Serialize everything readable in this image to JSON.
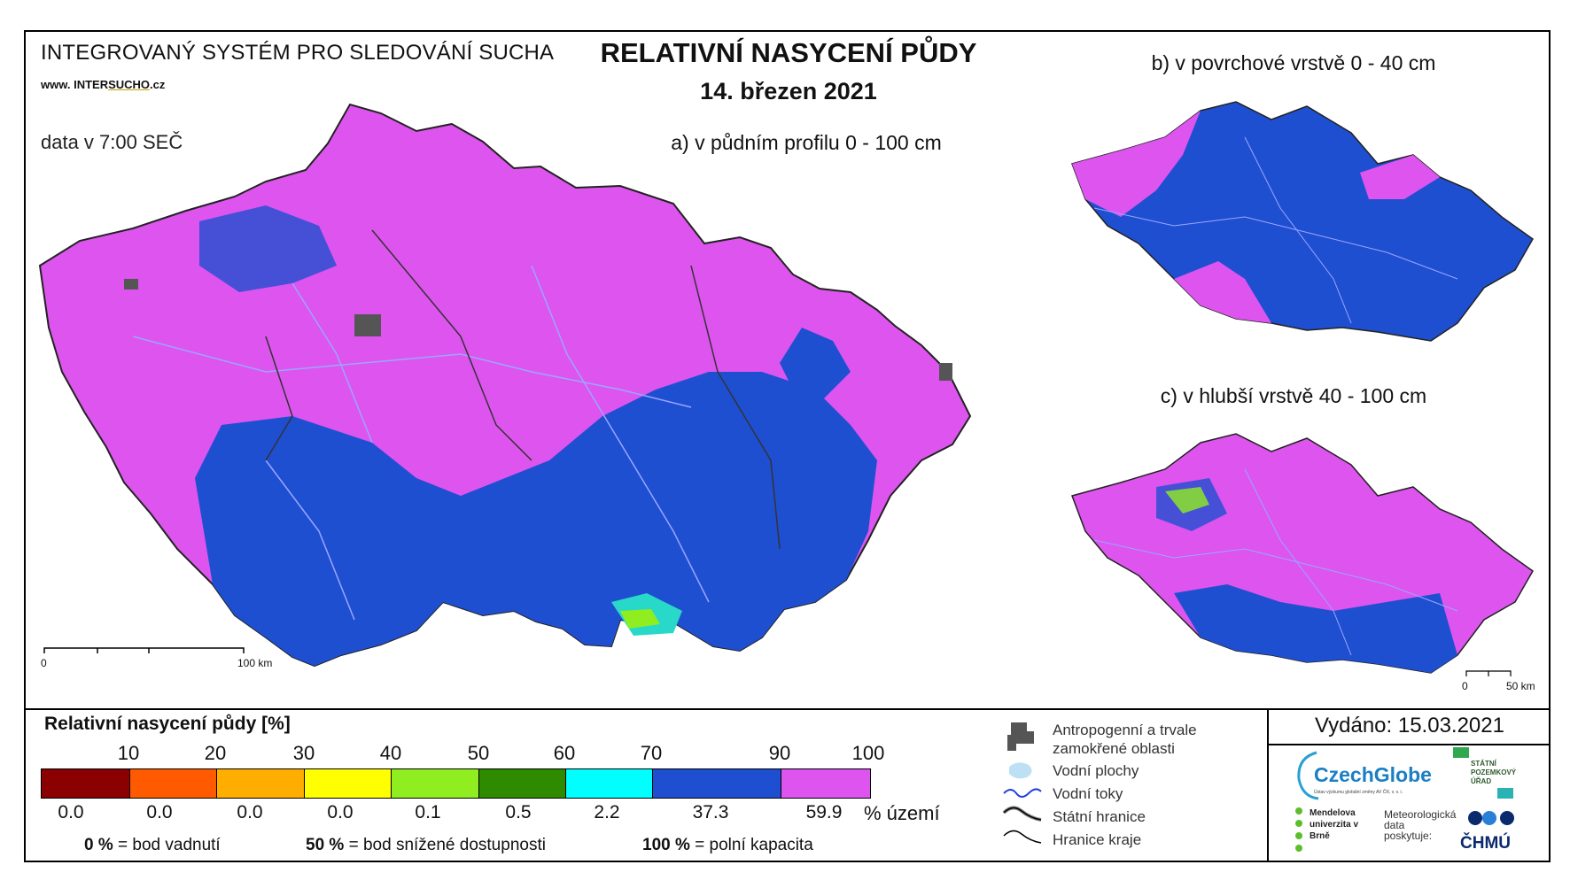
{
  "header": {
    "system": "INTEGROVANÝ SYSTÉM PRO SLEDOVÁNÍ SUCHA",
    "web_prefix": "www. INTER",
    "web_mid": "SUCHO",
    "web_suffix": ".cz",
    "data_time": "data v 7:00 SEČ"
  },
  "title": "RELATIVNÍ NASYCENÍ PŮDY",
  "date": "14. březen 2021",
  "maps": {
    "main_label": "a) v půdním profilu 0 - 100 cm",
    "top_right_label": "b) v povrchové vrstvě 0 - 40 cm",
    "bottom_right_label": "c) v hlubší vrstvě 40 - 100 cm"
  },
  "scalebars": {
    "main": {
      "start": "0",
      "end": "100 km"
    },
    "small": {
      "start": "0",
      "end": "50 km"
    }
  },
  "legend": {
    "title": "Relativní nasycení půdy [%]",
    "ticks": [
      "10",
      "20",
      "30",
      "40",
      "50",
      "60",
      "70",
      "90",
      "100"
    ],
    "classes": [
      {
        "color": "#8b0000",
        "percent": "0.0"
      },
      {
        "color": "#ff5a00",
        "percent": "0.0"
      },
      {
        "color": "#ffae00",
        "percent": "0.0"
      },
      {
        "color": "#ffff00",
        "percent": "0.0"
      },
      {
        "color": "#90ee20",
        "percent": "0.1"
      },
      {
        "color": "#2e8b00",
        "percent": "0.5"
      },
      {
        "color": "#00ffff",
        "percent": "2.2"
      },
      {
        "color": "#1f4fd1",
        "percent": "37.3"
      },
      {
        "color": "#dd55ee",
        "percent": "59.9"
      }
    ],
    "percent_unit": "% území",
    "notes": [
      {
        "value": "0 %",
        "text": "= bod vadnutí"
      },
      {
        "value": "50 %",
        "text": "= bod snížené dostupnosti"
      },
      {
        "value": "100 %",
        "text": "= polní kapacita"
      }
    ]
  },
  "symbols": [
    {
      "icon": "urban-area-icon",
      "label": "Antropogenní a trvale zamokřené oblasti"
    },
    {
      "icon": "water-body-icon",
      "label": "Vodní plochy"
    },
    {
      "icon": "river-icon",
      "label": "Vodní toky"
    },
    {
      "icon": "state-border-icon",
      "label": "Státní hranice"
    },
    {
      "icon": "region-border-icon",
      "label": "Hranice kraje"
    }
  ],
  "issued": "Vydáno: 15.03.2021",
  "logos": {
    "czechglobe": "CzechGlobe",
    "czechglobe_sub": "Ústav výzkumu globální změny AV ČR, v. v. i.",
    "spu": "STÁTNÍ POZEMKOVÝ ÚŘAD",
    "mendel": "Mendelova univerzita v Brně",
    "met_provider": "Meteorologická data poskytuje:",
    "chmu": "ČHMÚ"
  },
  "colors": {
    "wet": "#dd55ee",
    "moist": "#1f4fd1",
    "river": "#9aa6ff",
    "border": "#333333",
    "urban": "#555555"
  }
}
